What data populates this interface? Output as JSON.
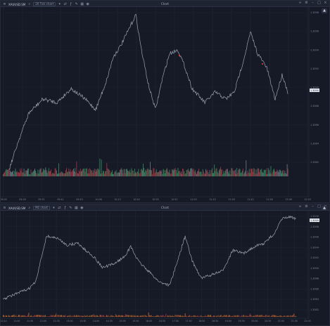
{
  "top_panel": {
    "symbol": "XAUUSD.SM",
    "interval": "20 Tick chart",
    "window_title": "Chart",
    "price_labels": [
      "1.3098",
      "1.3096",
      "1.3094",
      "1.3092",
      "1.3090",
      "1.3088",
      "1.3086",
      "1.3084",
      "1.3082"
    ],
    "current_price": "1.3090",
    "time_labels": [
      "09:00",
      "09:18",
      "09:31",
      "09:41",
      "09:53",
      "10:06",
      "10:13",
      "10:24",
      "10:35",
      "10:51",
      "11:03",
      "11:15",
      "11:28",
      "11:42",
      "11:56",
      "12:08",
      "12:20"
    ]
  },
  "bottom_panel": {
    "symbol": "XAUUSD.SM",
    "interval": "M1 chart",
    "window_title": "Chart",
    "price_labels": [
      "1.3100",
      "1.3098",
      "1.3096",
      "1.3094",
      "1.3092",
      "1.3090",
      "1.3088",
      "1.3086",
      "1.3084",
      "1.3082"
    ],
    "current_price": "1.3099",
    "time_labels": [
      "10 Jul",
      "11:00",
      "11:30",
      "12:00",
      "12:30",
      "13:00",
      "13:30",
      "14:00",
      "14:30",
      "15:00",
      "15:30",
      "16:00",
      "16:30",
      "17:00",
      "17:30",
      "18:00",
      "18:30",
      "19:00",
      "19:30",
      "20:00",
      "20:30",
      "21:00",
      "21:30",
      "22:00"
    ]
  },
  "colors": {
    "bg": "#161a26",
    "price_line": "#9aa1b0",
    "volume_green": "#3aa66a",
    "volume_red": "#c43c4a",
    "volume_orange": "#d9772e",
    "marker": "#ff3b3b"
  }
}
